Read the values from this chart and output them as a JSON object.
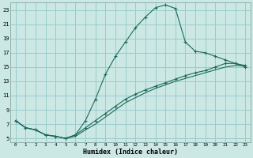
{
  "xlabel": "Humidex (Indice chaleur)",
  "bg_color": "#cce8e4",
  "grid_color": "#99cccc",
  "line_color": "#1a6b5a",
  "xlim": [
    -0.5,
    23.5
  ],
  "ylim": [
    4.5,
    24.0
  ],
  "xticks": [
    0,
    1,
    2,
    3,
    4,
    5,
    6,
    7,
    8,
    9,
    10,
    11,
    12,
    13,
    14,
    15,
    16,
    17,
    18,
    19,
    20,
    21,
    22,
    23
  ],
  "yticks": [
    5,
    7,
    9,
    11,
    13,
    15,
    17,
    19,
    21,
    23
  ],
  "line1_x": [
    0,
    1,
    2,
    3,
    4,
    5,
    6,
    7,
    8,
    9,
    10,
    11,
    12,
    13,
    14,
    15,
    16,
    17,
    18,
    19,
    20,
    21,
    22,
    23
  ],
  "line1_y": [
    7.5,
    6.5,
    6.2,
    5.5,
    5.3,
    5.0,
    5.5,
    7.5,
    10.5,
    14.0,
    16.5,
    18.5,
    20.5,
    22.0,
    23.3,
    23.7,
    23.2,
    18.5,
    17.2,
    17.0,
    16.5,
    16.0,
    15.5,
    15.0
  ],
  "line1_markers": [
    0,
    1,
    2,
    3,
    4,
    5,
    6,
    7,
    8,
    9,
    10,
    11,
    12,
    13,
    14,
    15,
    16,
    17,
    18,
    19,
    20,
    21,
    22,
    23
  ],
  "line2_x": [
    0,
    1,
    2,
    3,
    4,
    5,
    6,
    7,
    8,
    9,
    10,
    11,
    12,
    13,
    14,
    15,
    16,
    17,
    18,
    19,
    20,
    21,
    22,
    23
  ],
  "line2_y": [
    7.5,
    6.5,
    6.2,
    5.5,
    5.3,
    5.0,
    5.5,
    6.5,
    7.5,
    8.5,
    9.5,
    10.5,
    11.2,
    11.8,
    12.3,
    12.8,
    13.3,
    13.8,
    14.2,
    14.5,
    15.0,
    15.5,
    15.5,
    15.2
  ],
  "line3_x": [
    0,
    1,
    2,
    3,
    4,
    5,
    6,
    7,
    8,
    9,
    10,
    11,
    12,
    13,
    14,
    15,
    16,
    17,
    18,
    19,
    20,
    21,
    22,
    23
  ],
  "line3_y": [
    7.5,
    6.5,
    6.2,
    5.5,
    5.3,
    5.0,
    5.3,
    6.2,
    7.0,
    8.0,
    9.0,
    10.0,
    10.7,
    11.4,
    12.0,
    12.5,
    13.0,
    13.4,
    13.8,
    14.2,
    14.6,
    15.0,
    15.2,
    15.2
  ]
}
